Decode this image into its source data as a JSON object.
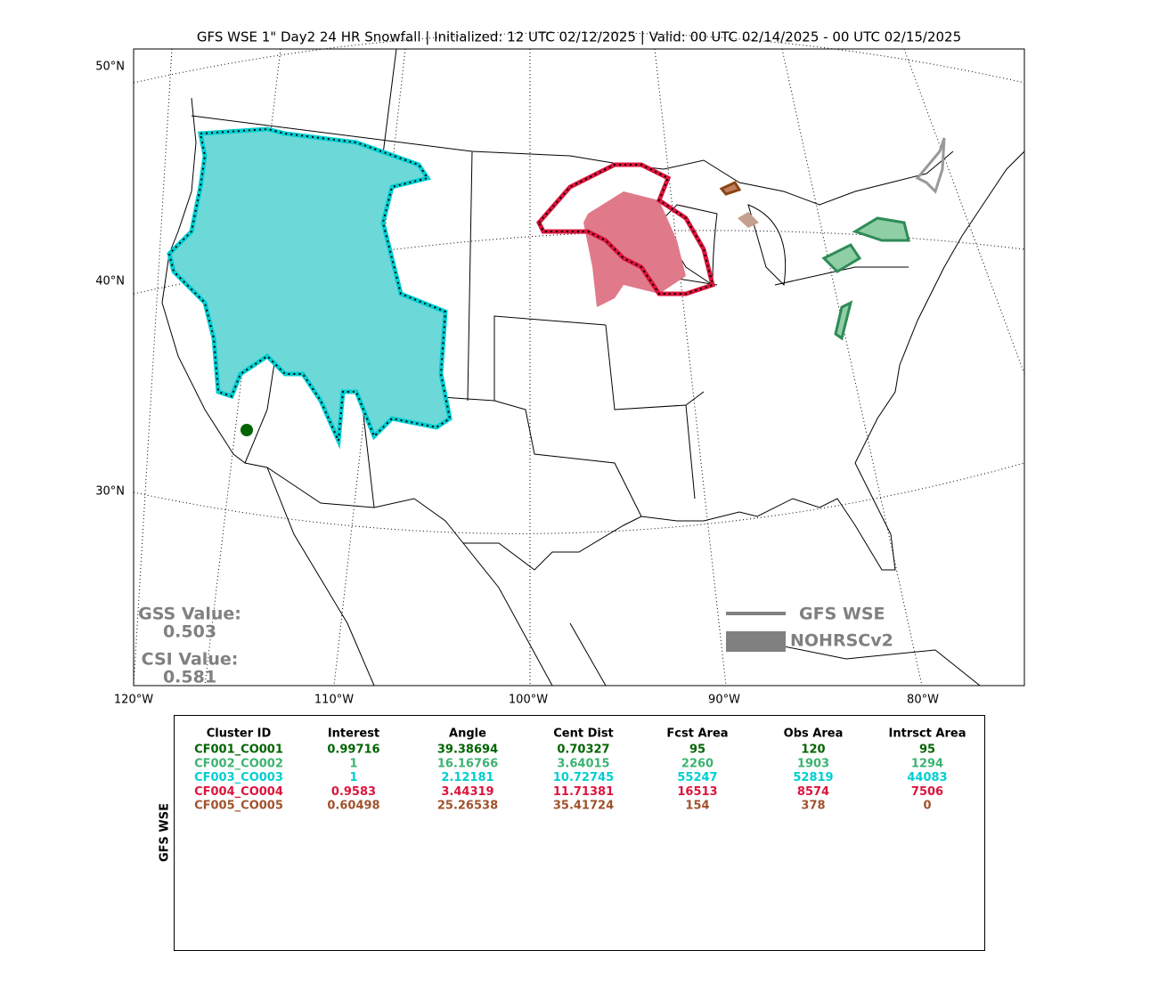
{
  "title": "GFS WSE 1\" Day2 24 HR Snowfall | Initialized: 12 UTC 02/12/2025 | Valid: 00 UTC 02/14/2025 - 00 UTC 02/15/2025",
  "map": {
    "lat_labels": [
      "50°N",
      "40°N",
      "30°N"
    ],
    "lon_labels": [
      "120°W",
      "110°W",
      "100°W",
      "90°W",
      "80°W"
    ],
    "scores": [
      {
        "label": "GSS Value:",
        "value": 0.503
      },
      {
        "label": "CSI Value:",
        "value": 0.581
      }
    ],
    "legend": [
      "GFS WSE",
      "NOHRSCv2"
    ]
  },
  "table": {
    "side_label": "GFS WSE",
    "columns": [
      "Cluster ID",
      "Interest",
      "Angle",
      "Cent Dist",
      "Fcst Area",
      "Obs Area",
      "Intrsct Area"
    ],
    "row_colors": [
      "#006400",
      "#3cb371",
      "#00ced1",
      "#dc143c",
      "#a0522d"
    ],
    "rows": [
      [
        "CF001_CO001",
        0.99716,
        39.38694,
        0.70327,
        95,
        120,
        95
      ],
      [
        "CF002_CO002",
        1,
        16.16766,
        3.64015,
        2260,
        1903,
        1294
      ],
      [
        "CF003_CO003",
        1,
        2.12181,
        10.72745,
        55247,
        52819,
        44083
      ],
      [
        "CF004_CO004",
        0.9583,
        3.44319,
        11.71381,
        16513,
        8574,
        7506
      ],
      [
        "CF005_CO005",
        0.60498,
        25.26538,
        35.41724,
        154,
        378,
        0
      ]
    ]
  }
}
